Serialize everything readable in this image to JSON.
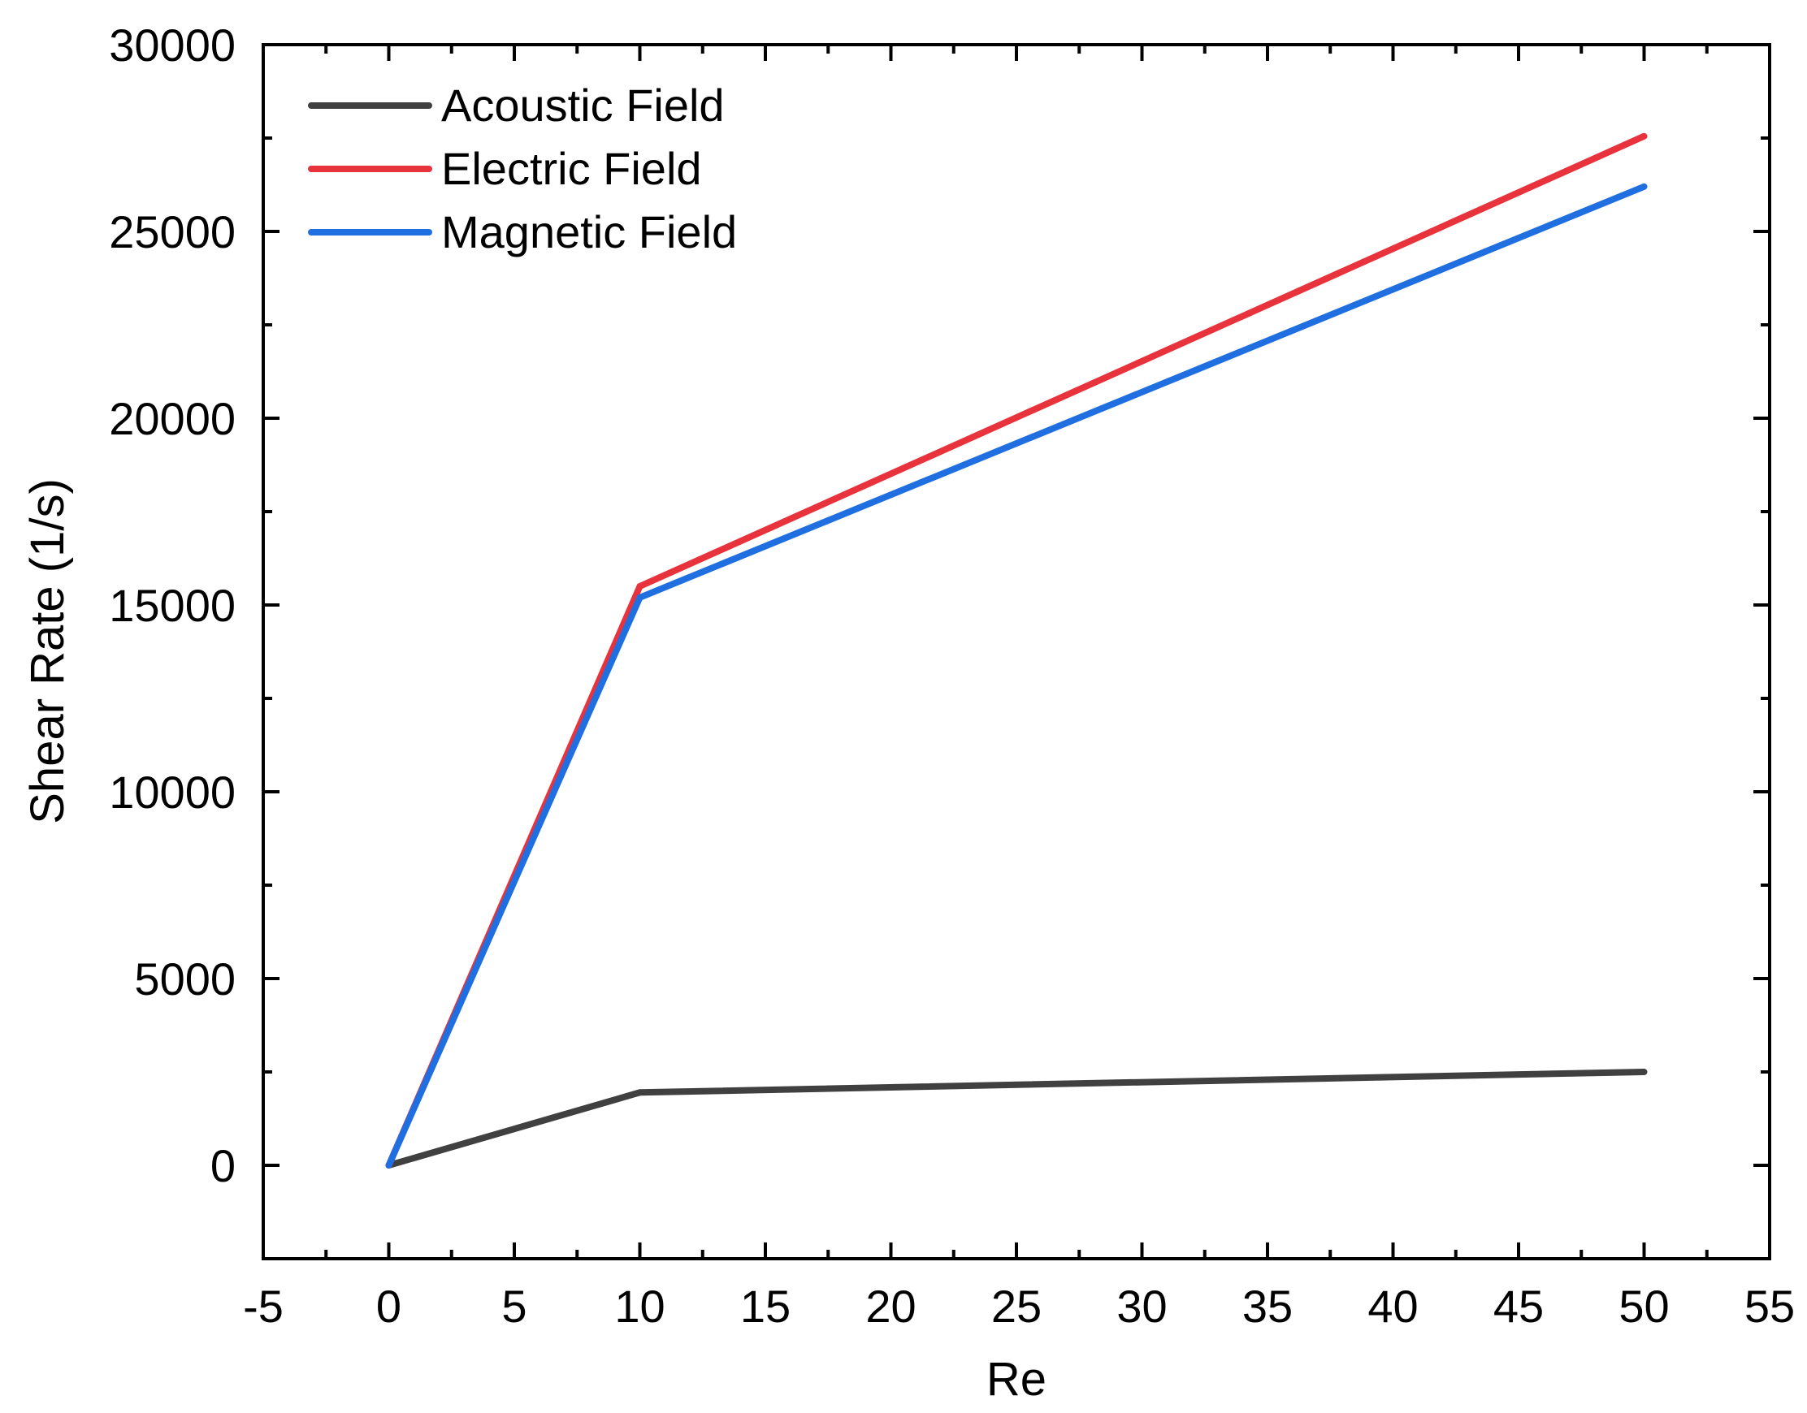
{
  "chart_data": {
    "type": "line",
    "title": "",
    "xlabel": "Re",
    "ylabel": "Shear Rate (1/s)",
    "xlim": [
      -5,
      55
    ],
    "ylim": [
      -2500,
      30000
    ],
    "xticks": [
      -5,
      0,
      5,
      10,
      15,
      20,
      25,
      30,
      35,
      40,
      45,
      50,
      55
    ],
    "yticks": [
      0,
      5000,
      10000,
      15000,
      20000,
      25000,
      30000
    ],
    "x_minor_step": 2.5,
    "y_minor_step": 2500,
    "legend_position": "top-left",
    "grid": false,
    "x": [
      0,
      10,
      50
    ],
    "series": [
      {
        "name": "Acoustic Field",
        "color": "#404040",
        "values": [
          0,
          1950,
          2500
        ]
      },
      {
        "name": "Electric Field",
        "color": "#e8323c",
        "values": [
          0,
          15500,
          27550
        ]
      },
      {
        "name": "Magnetic Field",
        "color": "#1f6fe0",
        "values": [
          0,
          15200,
          26200
        ]
      }
    ]
  }
}
